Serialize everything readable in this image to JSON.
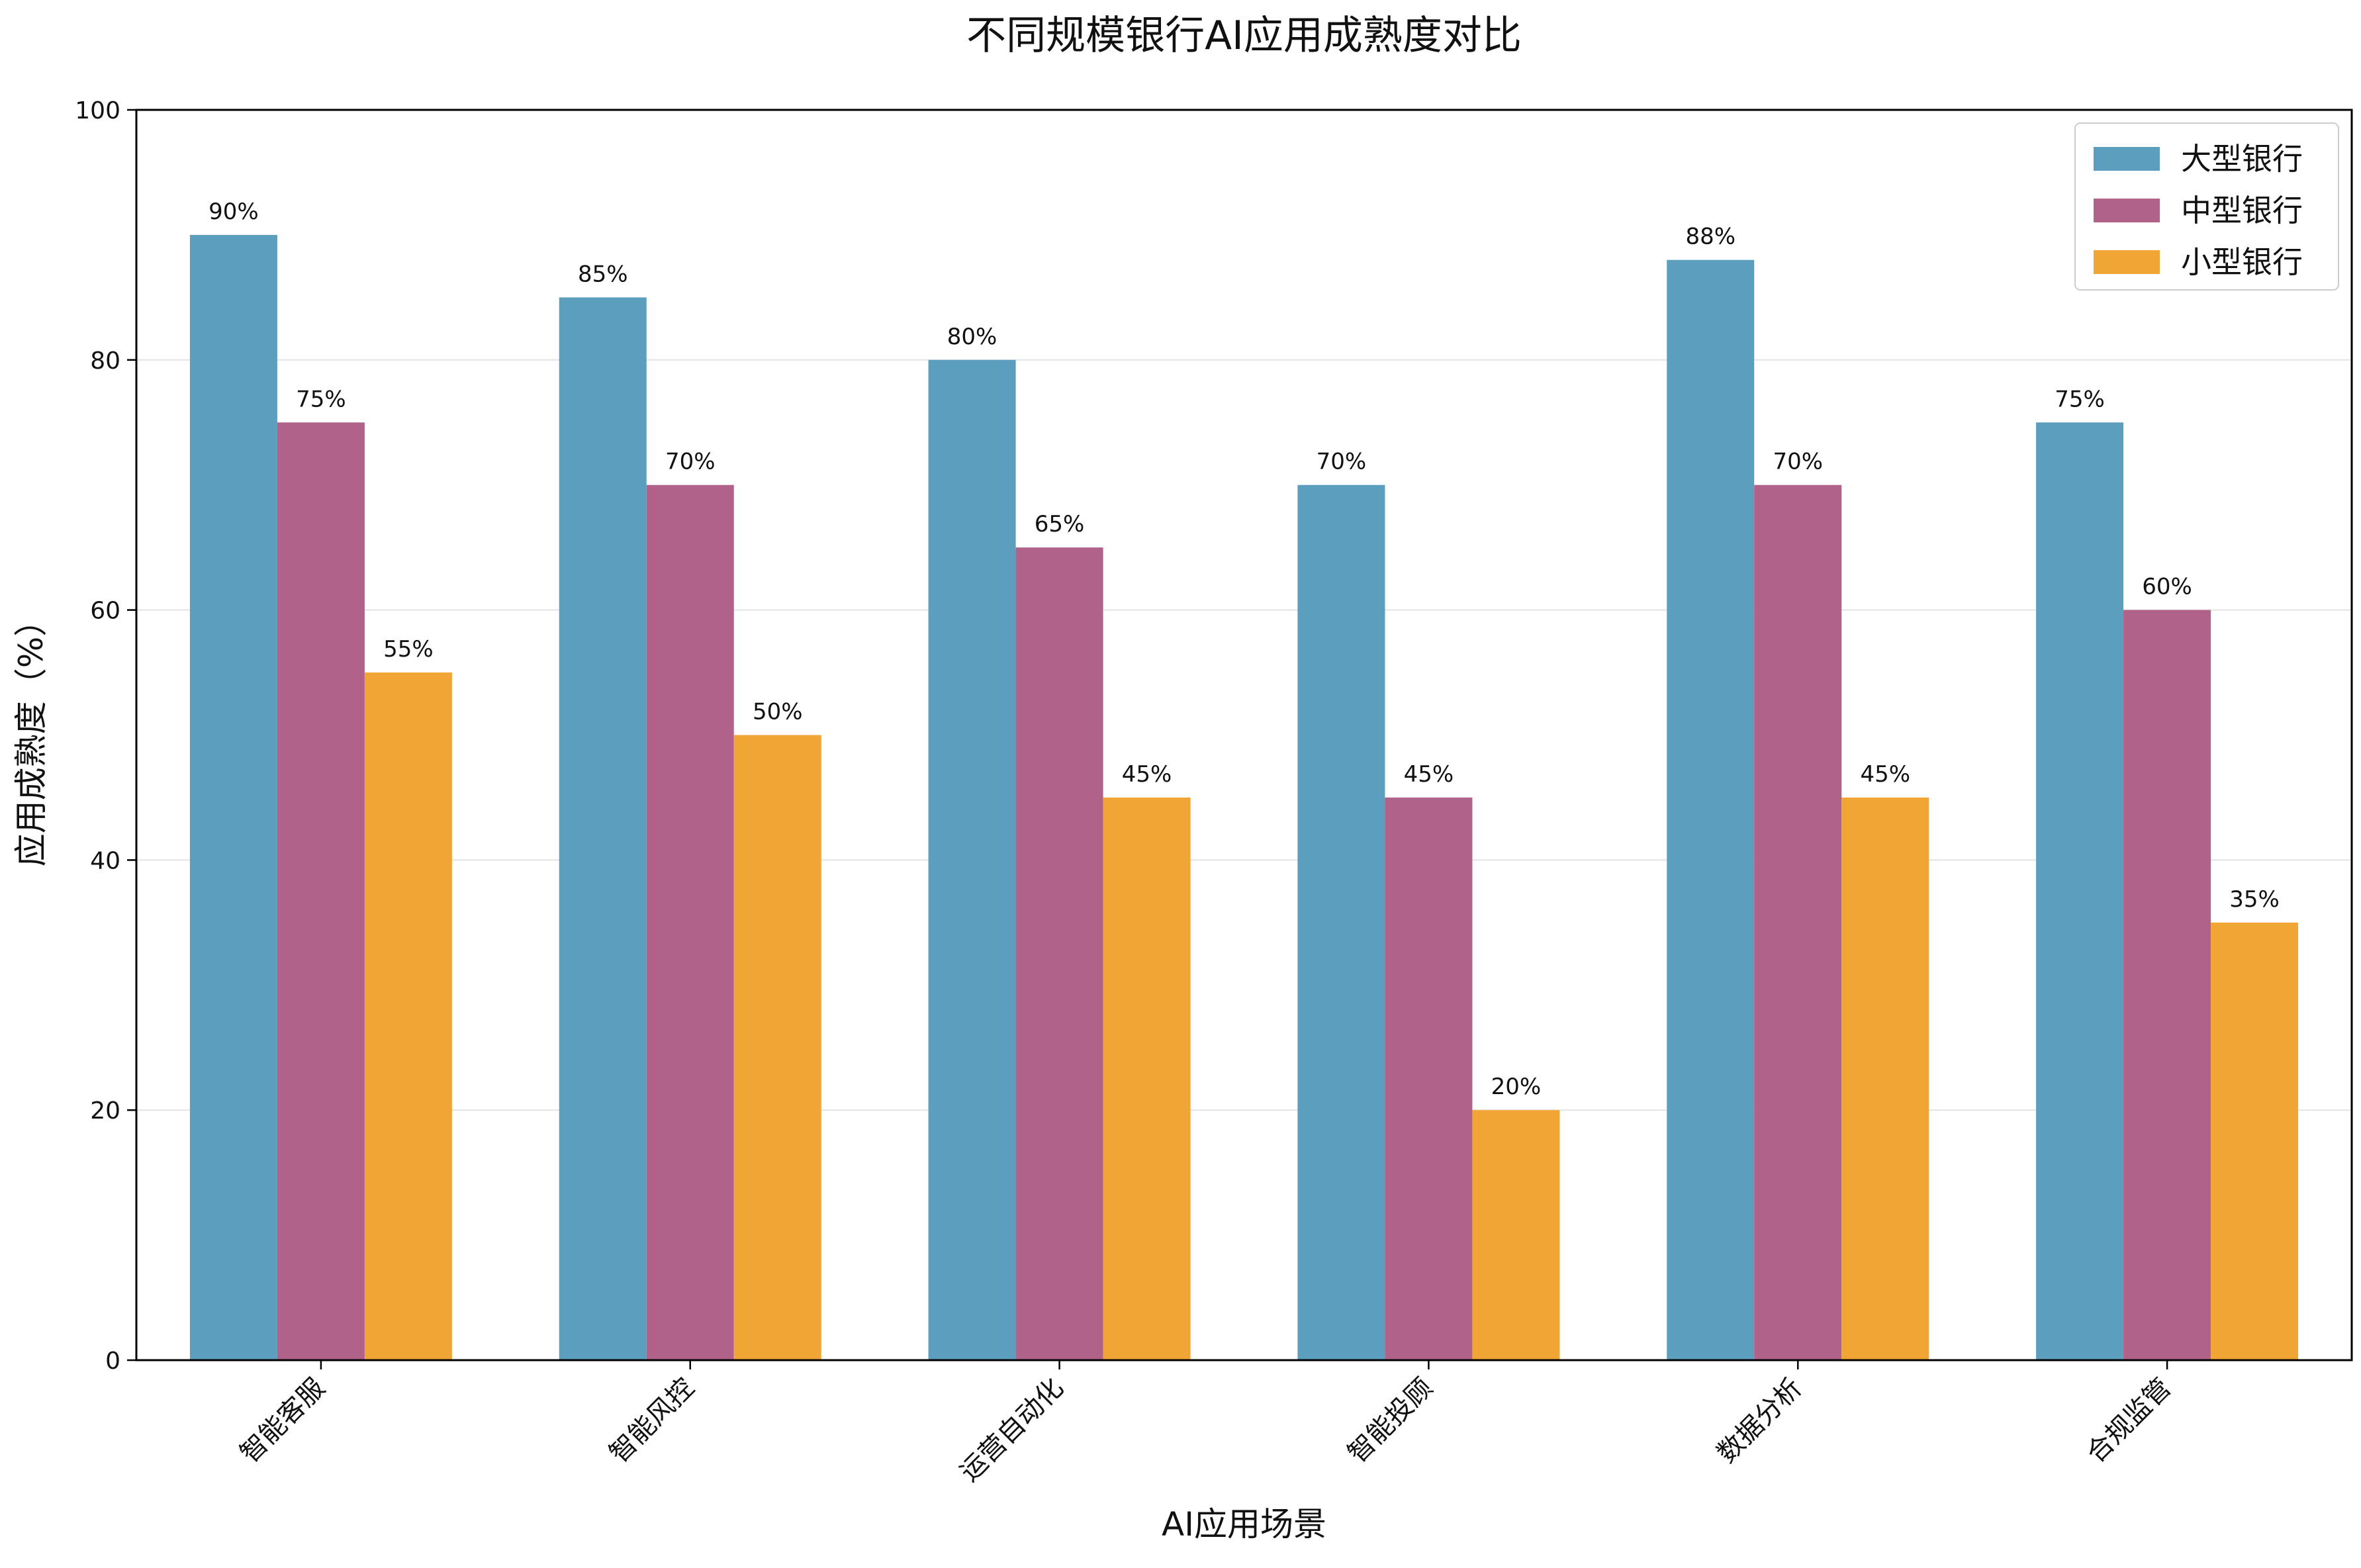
{
  "chart_data": {
    "type": "bar",
    "title": "不同规模银行AI应用成熟度对比",
    "xlabel": "AI应用场景",
    "ylabel": "应用成熟度（%）",
    "ylim": [
      0,
      100
    ],
    "yticks": [
      0,
      20,
      40,
      60,
      80,
      100
    ],
    "grid": "y-only",
    "legend_position": "top-right",
    "categories": [
      "智能客服",
      "智能风控",
      "运营自动化",
      "智能投顾",
      "数据分析",
      "合规监管"
    ],
    "series": [
      {
        "name": "大型银行",
        "color": "#5b9ebd",
        "values": [
          90,
          85,
          80,
          70,
          88,
          75
        ]
      },
      {
        "name": "中型银行",
        "color": "#b1628a",
        "values": [
          75,
          70,
          65,
          45,
          70,
          60
        ]
      },
      {
        "name": "小型银行",
        "color": "#f1a535",
        "values": [
          55,
          50,
          45,
          20,
          45,
          35
        ]
      }
    ],
    "value_suffix": "%"
  }
}
